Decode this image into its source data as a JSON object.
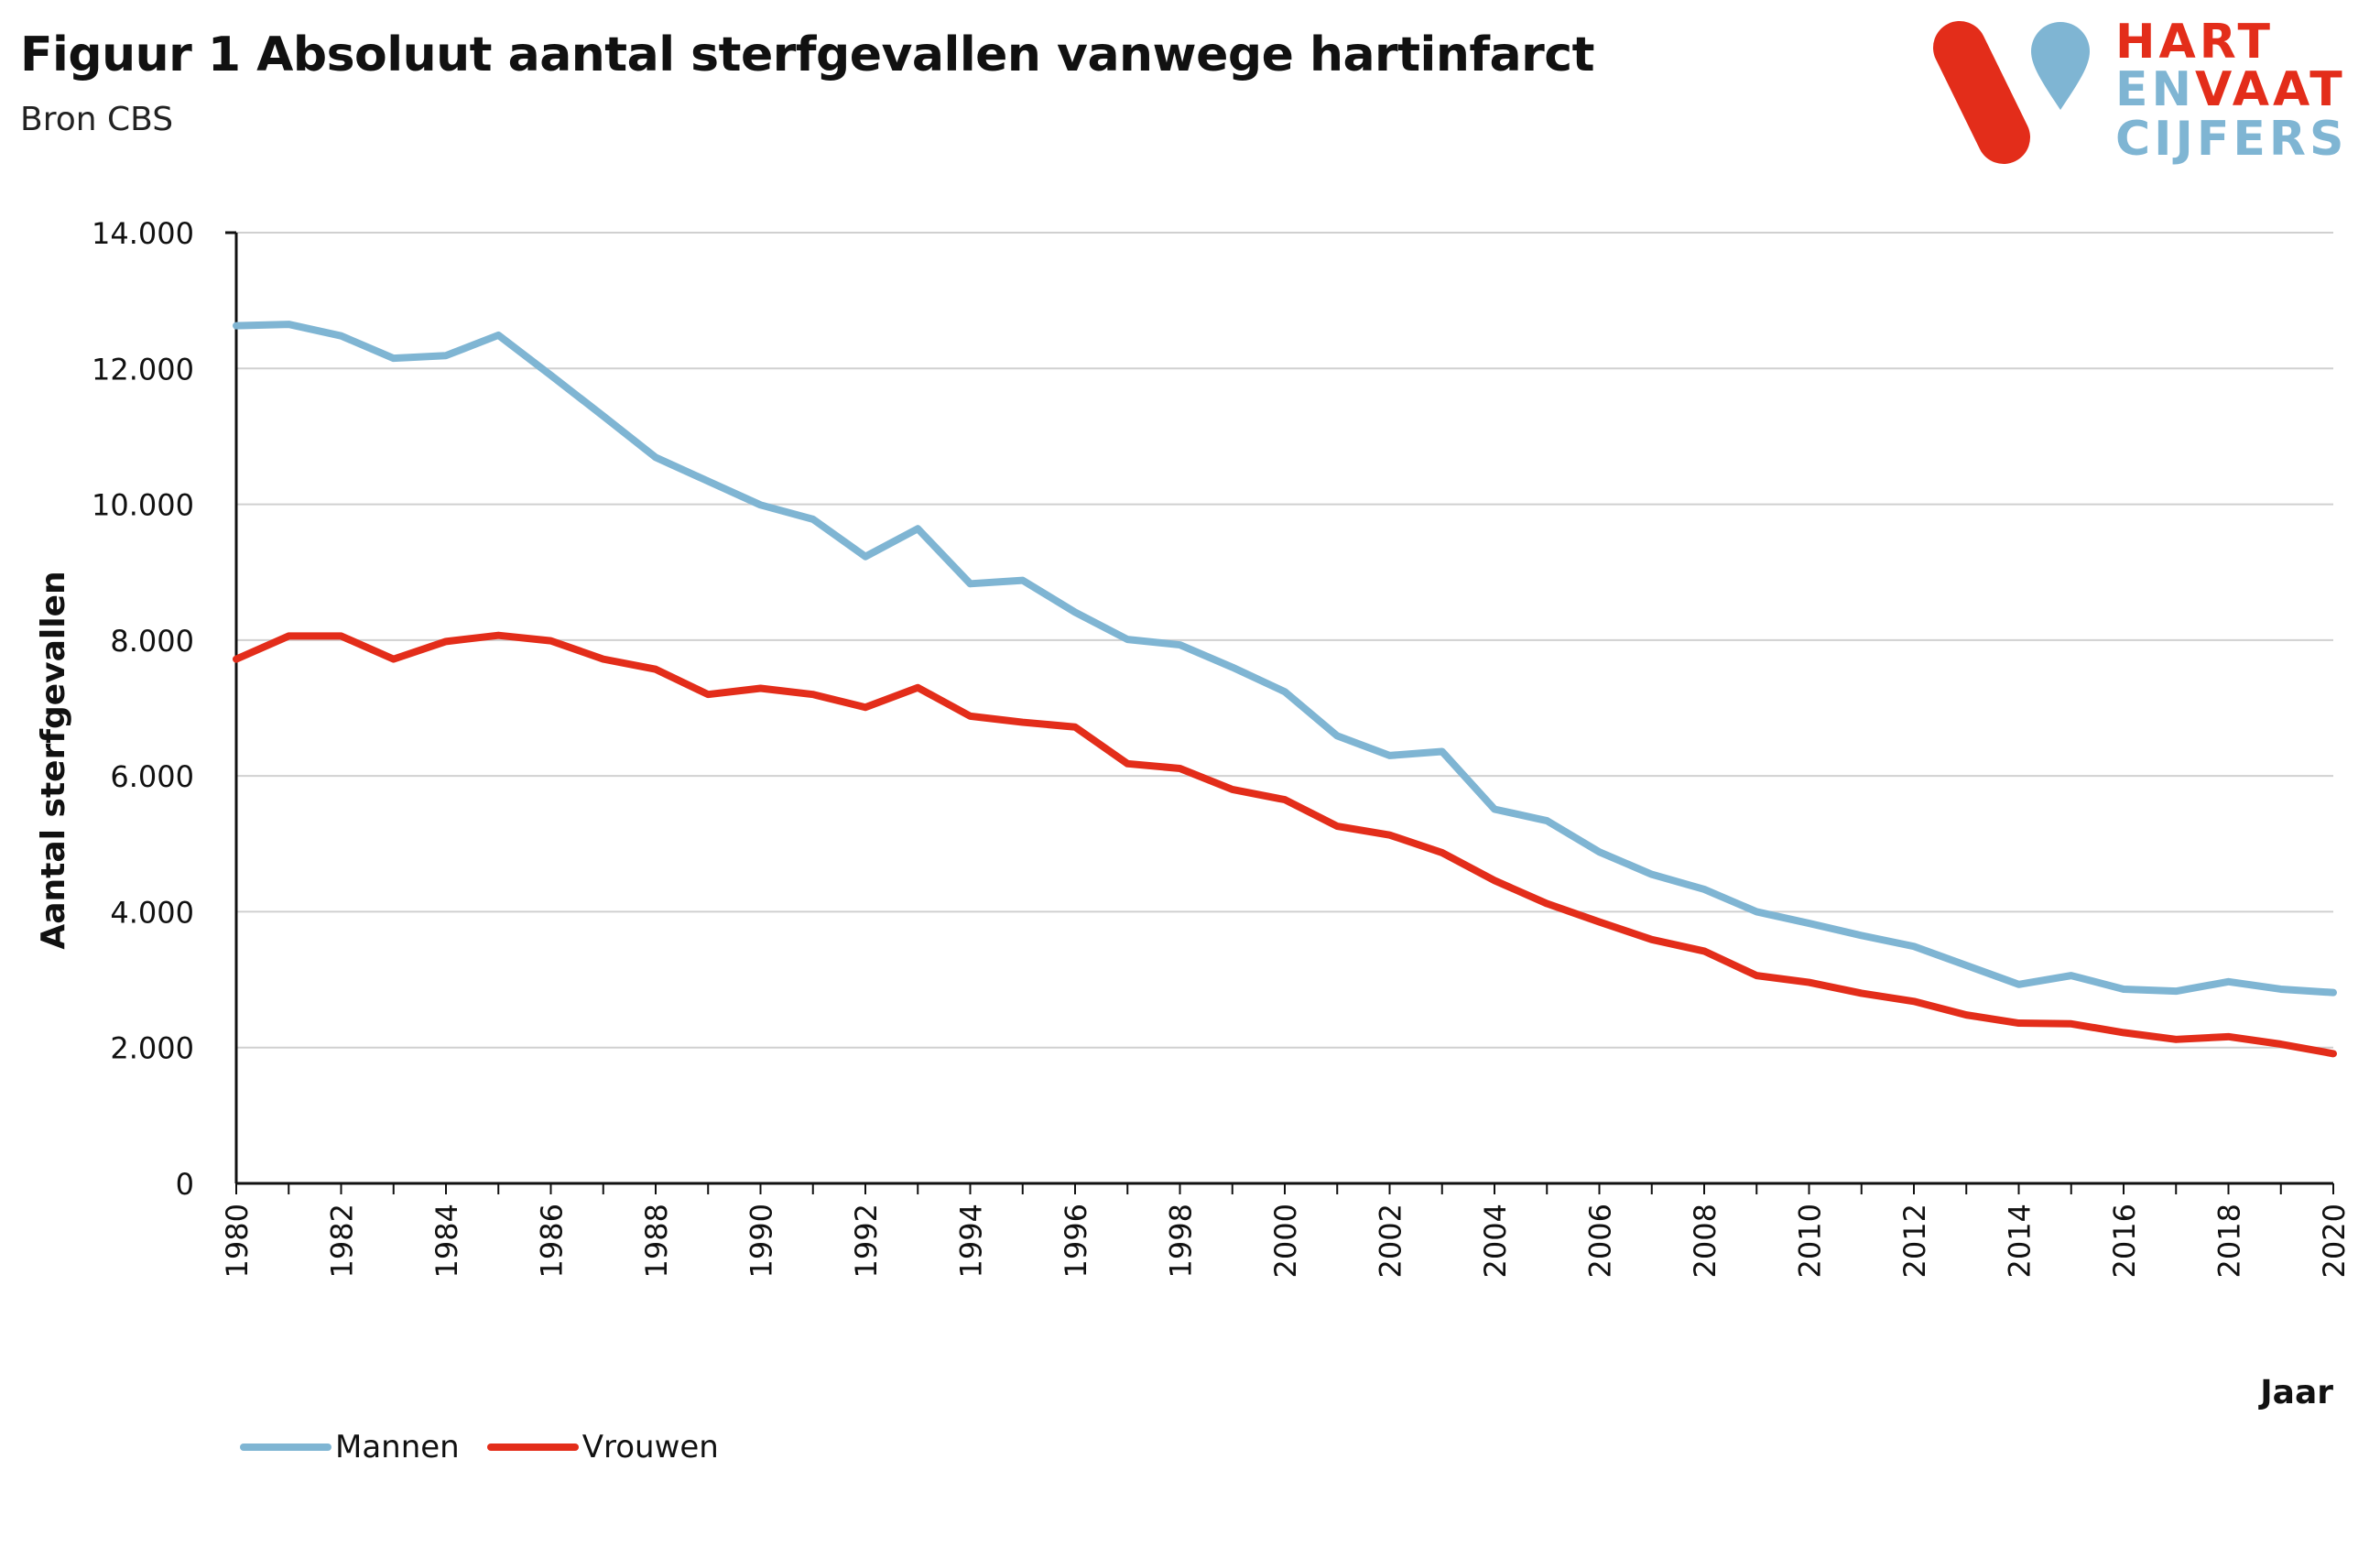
{
  "header": {
    "title": "Figuur 1 Absoluut aantal sterfgevallen vanwege hartinfarct",
    "subtitle": "Bron CBS"
  },
  "logo": {
    "line1_a": "HART",
    "line2_a": "EN",
    "line2_b": "VAAT",
    "line3_a": "CIJFERS",
    "colors": {
      "red": "#e32d1a",
      "blue": "#7fb5d3"
    }
  },
  "legend": {
    "items": [
      {
        "label": "Mannen",
        "color": "#7fb5d3"
      },
      {
        "label": "Vrouwen",
        "color": "#e32d1a"
      }
    ]
  },
  "chart_data": {
    "type": "line",
    "title": "Figuur 1 Absoluut aantal sterfgevallen vanwege hartinfarct",
    "xlabel": "Jaar",
    "ylabel": "Aantal sterfgevallen",
    "ylim": [
      0,
      14000
    ],
    "yticks": [
      0,
      2000,
      4000,
      6000,
      8000,
      10000,
      12000,
      14000
    ],
    "ytick_labels": [
      "0",
      "2.000",
      "4.000",
      "6.000",
      "8.000",
      "10.000",
      "12.000",
      "14.000"
    ],
    "xlim": [
      1980,
      2020
    ],
    "xtick_labels": [
      "1980",
      "1982",
      "1984",
      "1986",
      "1988",
      "1990",
      "1992",
      "1994",
      "1996",
      "1998",
      "2000",
      "2002",
      "2004",
      "2006",
      "2008",
      "2010",
      "2012",
      "2014",
      "2016",
      "2018",
      "2020"
    ],
    "grid": true,
    "legend_position": "bottom-left",
    "x": [
      1980,
      1981,
      1982,
      1983,
      1984,
      1985,
      1986,
      1987,
      1988,
      1989,
      1990,
      1991,
      1992,
      1993,
      1994,
      1995,
      1996,
      1997,
      1998,
      1999,
      2000,
      2001,
      2002,
      2003,
      2004,
      2005,
      2006,
      2007,
      2008,
      2009,
      2010,
      2011,
      2012,
      2013,
      2014,
      2015,
      2016,
      2017,
      2018,
      2019,
      2020
    ],
    "series": [
      {
        "name": "Mannen",
        "color": "#7fb5d3",
        "values": [
          12630,
          12650,
          12480,
          12150,
          12190,
          12490,
          11900,
          11300,
          10690,
          10340,
          9990,
          9780,
          9230,
          9640,
          8830,
          8880,
          8410,
          8010,
          7930,
          7600,
          7240,
          6590,
          6300,
          6360,
          5510,
          5340,
          4880,
          4550,
          4330,
          4000,
          3830,
          3650,
          3490,
          3210,
          2930,
          3060,
          2860,
          2830,
          2970,
          2860,
          2810
        ]
      },
      {
        "name": "Vrouwen",
        "color": "#e32d1a",
        "values": [
          7720,
          8060,
          8060,
          7720,
          7980,
          8070,
          7990,
          7720,
          7570,
          7200,
          7290,
          7200,
          7010,
          7300,
          6880,
          6790,
          6720,
          6180,
          6110,
          5800,
          5650,
          5260,
          5130,
          4870,
          4460,
          4120,
          3850,
          3590,
          3420,
          3060,
          2960,
          2800,
          2680,
          2480,
          2360,
          2350,
          2220,
          2120,
          2160,
          2050,
          1910
        ]
      }
    ]
  }
}
